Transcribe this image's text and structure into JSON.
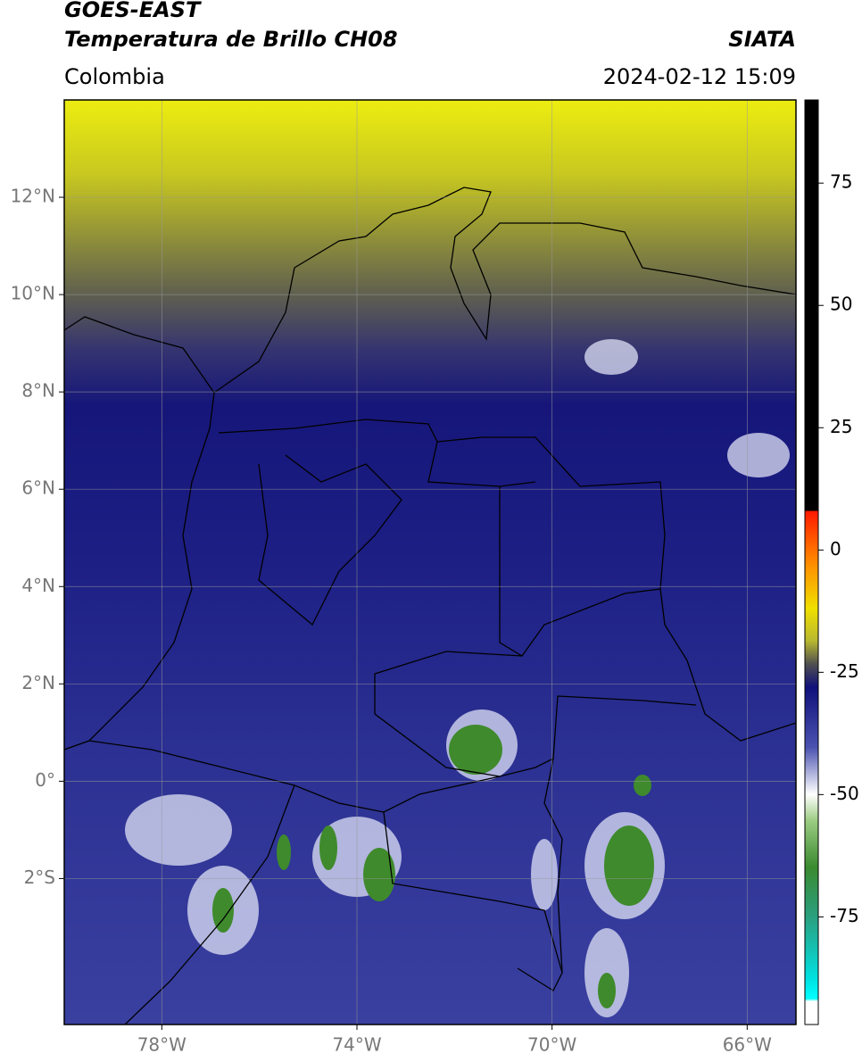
{
  "header": {
    "title_line1": "GOES-EAST",
    "title_line2": "Temperatura de Brillo CH08",
    "source": "SIATA",
    "region": "Colombia",
    "datetime": "2024-02-12 15:09"
  },
  "map": {
    "xlim": [
      -80,
      -65
    ],
    "ylim": [
      -5,
      14
    ],
    "xticks": [
      {
        "value": -78,
        "label": "78°W"
      },
      {
        "value": -74,
        "label": "74°W"
      },
      {
        "value": -70,
        "label": "70°W"
      },
      {
        "value": -66,
        "label": "66°W"
      }
    ],
    "yticks": [
      {
        "value": 12,
        "label": "12°N"
      },
      {
        "value": 10,
        "label": "10°N"
      },
      {
        "value": 8,
        "label": "8°N"
      },
      {
        "value": 6,
        "label": "6°N"
      },
      {
        "value": 4,
        "label": "4°N"
      },
      {
        "value": 2,
        "label": "2°N"
      },
      {
        "value": 0,
        "label": "0°"
      },
      {
        "value": -2,
        "label": "2°S"
      }
    ],
    "grid": true
  },
  "colorbar": {
    "clim": [
      -97,
      92
    ],
    "ticks": [
      75,
      50,
      25,
      0,
      -25,
      -50,
      -75
    ]
  }
}
